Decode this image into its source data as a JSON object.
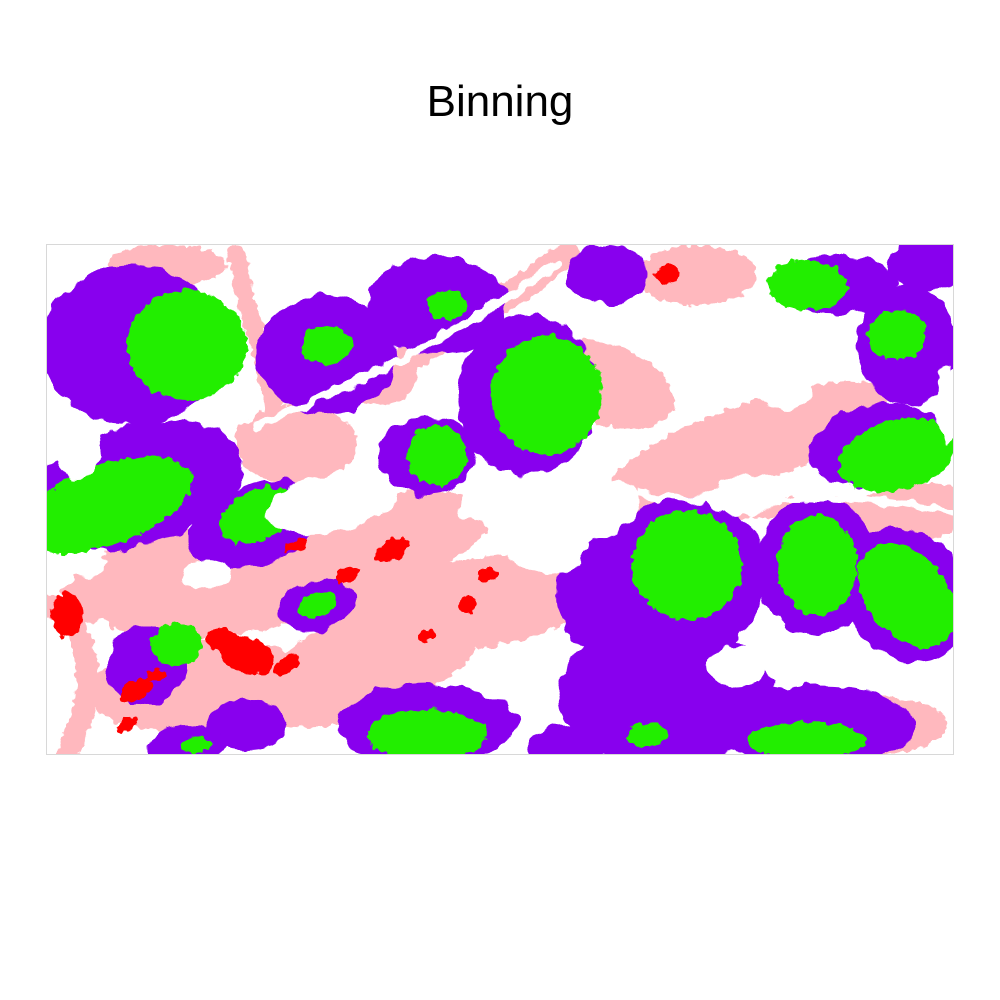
{
  "title": "Binning",
  "colors": {
    "background": "#ffffff",
    "purple": "#8800ee",
    "green": "#22ee00",
    "pink": "#ffb8be",
    "red": "#ff0000"
  }
}
